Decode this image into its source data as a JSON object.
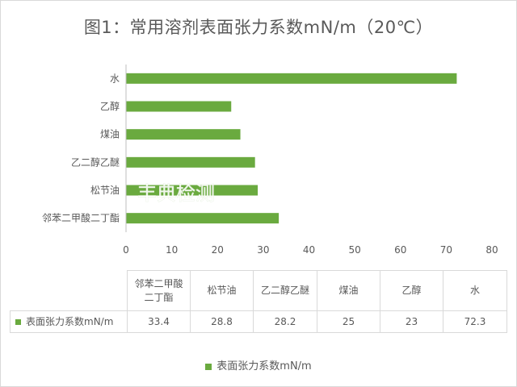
{
  "title": "图1：常用溶剂表面张力系数mN/m（20℃）",
  "watermark": "丰典检测",
  "chart_data": {
    "type": "bar",
    "orientation": "horizontal",
    "categories": [
      "水",
      "乙醇",
      "煤油",
      "乙二醇乙醚",
      "松节油",
      "邻苯二甲酸二丁酯"
    ],
    "series": [
      {
        "name": "表面张力系数mN/m",
        "values": [
          72.3,
          23,
          25,
          28.2,
          28.8,
          33.4
        ],
        "color": "#6aaa3f"
      }
    ],
    "xlim": [
      0,
      80
    ],
    "xticks": [
      "0",
      "10",
      "20",
      "30",
      "40",
      "50",
      "60",
      "70",
      "80"
    ],
    "grid": false,
    "legend_position": "bottom"
  },
  "table": {
    "headers": [
      [
        "邻苯二甲酸",
        "二丁酯"
      ],
      [
        "松节油"
      ],
      [
        "乙二醇乙醚"
      ],
      [
        "煤油"
      ],
      [
        "乙醇"
      ],
      [
        "水"
      ]
    ],
    "row_label": "表面张力系数mN/m",
    "values": [
      "33.4",
      "28.8",
      "28.2",
      "25",
      "23",
      "72.3"
    ]
  },
  "legend": {
    "label": "表面张力系数mN/m"
  }
}
